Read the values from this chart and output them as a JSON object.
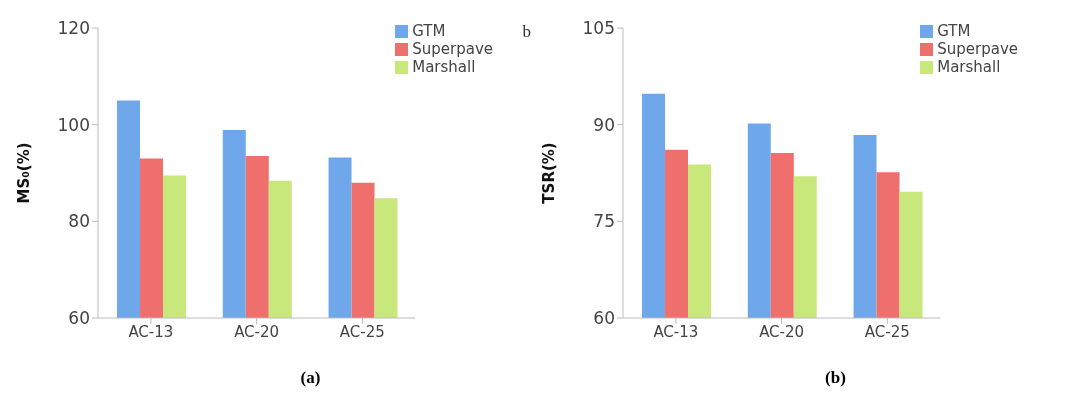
{
  "chart_data": [
    {
      "type": "bar",
      "title": "(a)",
      "ylabel": "MS₀(%)",
      "categories": [
        "AC-13",
        "AC-20",
        "AC-25"
      ],
      "series": [
        {
          "name": "GTM",
          "color": "#6fa8ea",
          "values": [
            105,
            98.9,
            93.2
          ]
        },
        {
          "name": "Superpave",
          "color": "#ef6f6c",
          "values": [
            93,
            93.5,
            88
          ]
        },
        {
          "name": "Marshall",
          "color": "#c8e87c",
          "values": [
            89.5,
            88.4,
            84.8
          ]
        }
      ],
      "ylim": [
        60,
        120
      ],
      "yticks": [
        60,
        80,
        100,
        120
      ],
      "grid": false,
      "legend": "top right",
      "annotations": [
        "b"
      ]
    },
    {
      "type": "bar",
      "title": "(b)",
      "ylabel": "TSR(%)",
      "categories": [
        "AC-13",
        "AC-20",
        "AC-25"
      ],
      "series": [
        {
          "name": "GTM",
          "color": "#6fa8ea",
          "values": [
            94.8,
            90.2,
            88.4
          ]
        },
        {
          "name": "Superpave",
          "color": "#ef6f6c",
          "values": [
            86.1,
            85.6,
            82.6
          ]
        },
        {
          "name": "Marshall",
          "color": "#c8e87c",
          "values": [
            83.8,
            82,
            79.6
          ]
        }
      ],
      "ylim": [
        60,
        105
      ],
      "yticks": [
        60,
        75,
        90,
        105
      ],
      "grid": false,
      "legend": "top right"
    }
  ]
}
